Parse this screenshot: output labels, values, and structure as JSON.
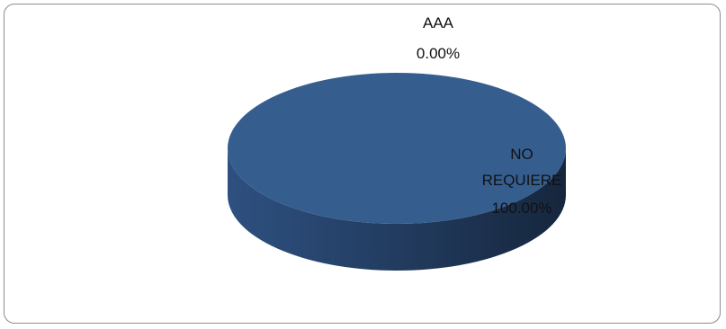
{
  "chart_data": {
    "type": "pie",
    "style": "3d",
    "categories": [
      "AAA",
      "NO REQUIERE"
    ],
    "values": [
      0.0,
      100.0
    ],
    "percent_labels": [
      "0.00%",
      "100.00%"
    ],
    "colors": [
      "#4f81bd",
      "#355e8f"
    ],
    "legend": "none"
  },
  "labels": {
    "aaa_name": "AAA",
    "aaa_pct": "0.00%",
    "nr_name_1": "NO",
    "nr_name_2": "REQUIERE",
    "nr_pct": "100.00%"
  }
}
